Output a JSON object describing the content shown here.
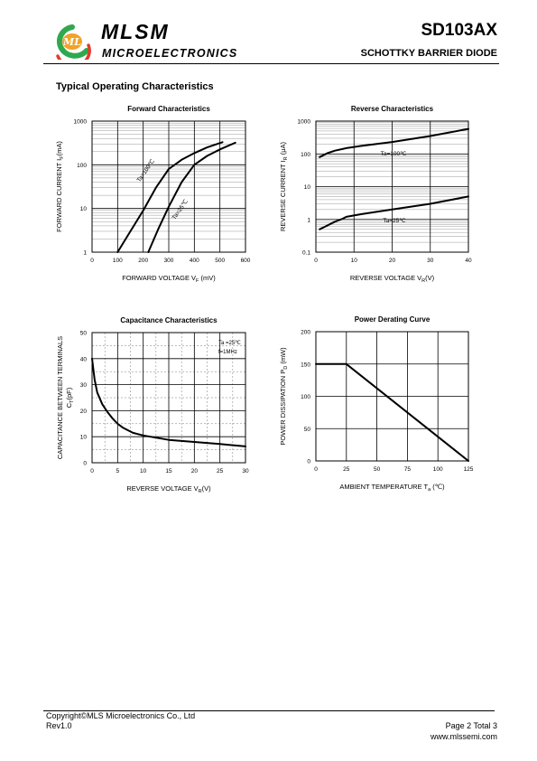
{
  "header": {
    "brand": "MLSM",
    "brand_sub": "MICROELECTRONICS",
    "part_number": "SD103AX",
    "part_description": "SCHOTTKY BARRIER DIODE"
  },
  "section_title": "Typical Operating Characteristics",
  "chart_data": [
    {
      "type": "line",
      "title": "Forward  Characteristics",
      "xlabel": "FORWARD VOLTAGE  V",
      "xlabel_sub": "F",
      "xlabel_unit": " (mV)",
      "ylabel": "FORWARD CURRENT   I",
      "ylabel_sub": "F",
      "ylabel_unit": "(mA)",
      "x_scale": "linear",
      "y_scale": "log",
      "xlim": [
        0,
        600
      ],
      "ylim": [
        1,
        1000
      ],
      "x_ticks": [
        "0",
        "100",
        "200",
        "300",
        "400",
        "500",
        "600"
      ],
      "y_ticks": [
        "1",
        "10",
        "100",
        "1000"
      ],
      "grid": true,
      "series": [
        {
          "name": "Ta=100℃",
          "x": [
            100,
            150,
            200,
            250,
            300,
            350,
            400,
            450,
            510
          ],
          "y": [
            1,
            3,
            9,
            30,
            80,
            130,
            185,
            250,
            330
          ]
        },
        {
          "name": "Ta=25℃",
          "x": [
            220,
            260,
            300,
            350,
            400,
            450,
            500,
            560
          ],
          "y": [
            1,
            3.5,
            11,
            40,
            100,
            160,
            225,
            320
          ]
        }
      ]
    },
    {
      "type": "line",
      "title": "Reverse  Characteristics",
      "xlabel": "REVERSE VOLTAGE    V",
      "xlabel_sub": "R",
      "xlabel_unit": "(V)",
      "ylabel": "REVERSE CURRENT   I",
      "ylabel_sub": "R",
      "ylabel_unit": "  (μA)",
      "x_scale": "linear",
      "y_scale": "log",
      "xlim": [
        0,
        40
      ],
      "ylim": [
        0.1,
        1000
      ],
      "x_ticks": [
        "0",
        "10",
        "20",
        "30",
        "40"
      ],
      "y_ticks": [
        "0.1",
        "1",
        "10",
        "100",
        "1000"
      ],
      "grid": true,
      "series": [
        {
          "name": "Ta=100℃",
          "x": [
            1,
            3,
            5,
            8,
            12,
            20,
            30,
            40
          ],
          "y": [
            80,
            105,
            125,
            150,
            175,
            230,
            350,
            580
          ]
        },
        {
          "name": "Ta=25℃",
          "x": [
            1,
            3,
            5,
            7,
            8,
            12,
            20,
            30,
            40
          ],
          "y": [
            0.5,
            0.65,
            0.85,
            1.05,
            1.2,
            1.45,
            2.0,
            3.0,
            5.0
          ]
        }
      ]
    },
    {
      "type": "line",
      "title": "Capacitance Characteristics",
      "xlabel": "REVERSE VOLTAGE    V",
      "xlabel_sub": "R",
      "xlabel_unit": "(V)",
      "ylabel": "CAPACITANCE BETWEEN TERMINALS",
      "ylabel2": "C",
      "ylabel2_sub": "T",
      "ylabel2_unit": "(pF)",
      "x_scale": "linear",
      "y_scale": "linear",
      "xlim": [
        0,
        30
      ],
      "ylim": [
        0,
        50
      ],
      "x_ticks": [
        "0",
        "5",
        "10",
        "15",
        "20",
        "25",
        "30"
      ],
      "y_ticks": [
        "0",
        "10",
        "20",
        "30",
        "40",
        "50"
      ],
      "grid": true,
      "annotation": [
        "Ta =25℃",
        "f=1MHz"
      ],
      "series": [
        {
          "x": [
            0,
            0.5,
            1,
            2,
            3,
            4,
            5,
            6,
            8,
            10,
            15,
            20,
            25,
            30
          ],
          "y": [
            40,
            32,
            27,
            22.5,
            19.5,
            17,
            15,
            13.5,
            11.5,
            10.5,
            8.8,
            8,
            7.2,
            6.3
          ]
        }
      ]
    },
    {
      "type": "line",
      "title": "Power Derating Curve",
      "xlabel": "AMBIENT TEMPERATURE     T",
      "xlabel_sub": "a",
      "xlabel_unit": "  (℃)",
      "ylabel": "POWER  DISSIPATION  P",
      "ylabel_sub": "D",
      "ylabel_unit": "  (mW)",
      "x_scale": "linear",
      "y_scale": "linear",
      "xlim": [
        0,
        125
      ],
      "ylim": [
        0,
        200
      ],
      "x_ticks": [
        "0",
        "25",
        "50",
        "75",
        "100",
        "125"
      ],
      "y_ticks": [
        "0",
        "50",
        "100",
        "150",
        "200"
      ],
      "grid": true,
      "series": [
        {
          "x": [
            0,
            25,
            125
          ],
          "y": [
            150,
            150,
            0
          ]
        }
      ]
    }
  ],
  "footer": {
    "copyright": "Copyright©MLS Microelectronics Co., Ltd",
    "revision": "Rev1.0",
    "page": "Page 2 Total 3",
    "website": "www.mlssemi.com"
  },
  "colors": {
    "logo_green": "#2fa84f",
    "logo_red": "#e23b2e",
    "logo_orange": "#f2a227"
  }
}
